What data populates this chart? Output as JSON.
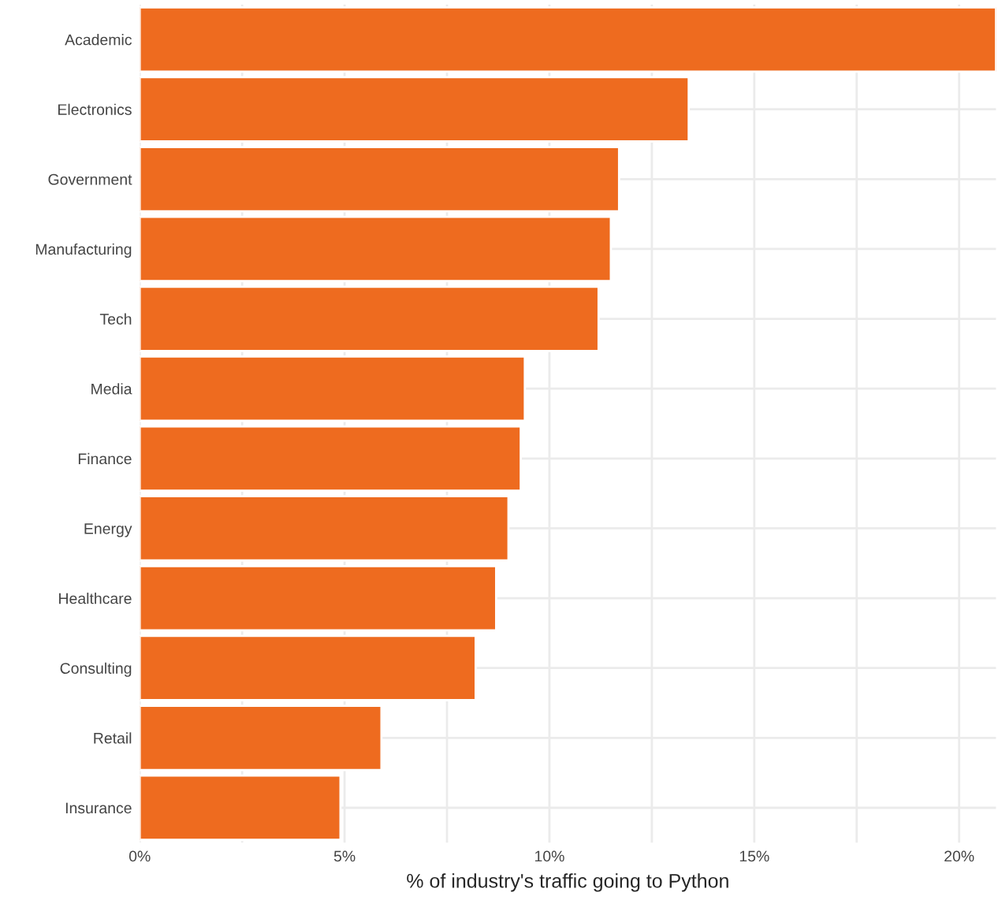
{
  "chart_data": {
    "type": "bar",
    "orientation": "horizontal",
    "xlabel": "% of industry's traffic going to Python",
    "categories": [
      "Academic",
      "Electronics",
      "Government",
      "Manufacturing",
      "Tech",
      "Media",
      "Finance",
      "Energy",
      "Healthcare",
      "Consulting",
      "Retail",
      "Insurance"
    ],
    "values": [
      20.9,
      13.4,
      11.7,
      11.5,
      11.2,
      9.4,
      9.3,
      9.0,
      8.7,
      8.2,
      5.9,
      4.9
    ],
    "color": "#ee6b1f",
    "xlim": [
      0,
      20.9
    ],
    "xticks": [
      {
        "value": 0,
        "label": "0%"
      },
      {
        "value": 2.5,
        "label": null
      },
      {
        "value": 5,
        "label": "5%"
      },
      {
        "value": 7.5,
        "label": null
      },
      {
        "value": 10,
        "label": "10%"
      },
      {
        "value": 12.5,
        "label": null
      },
      {
        "value": 15,
        "label": "15%"
      },
      {
        "value": 17.5,
        "label": null
      },
      {
        "value": 20,
        "label": "20%"
      }
    ],
    "grid": true
  }
}
